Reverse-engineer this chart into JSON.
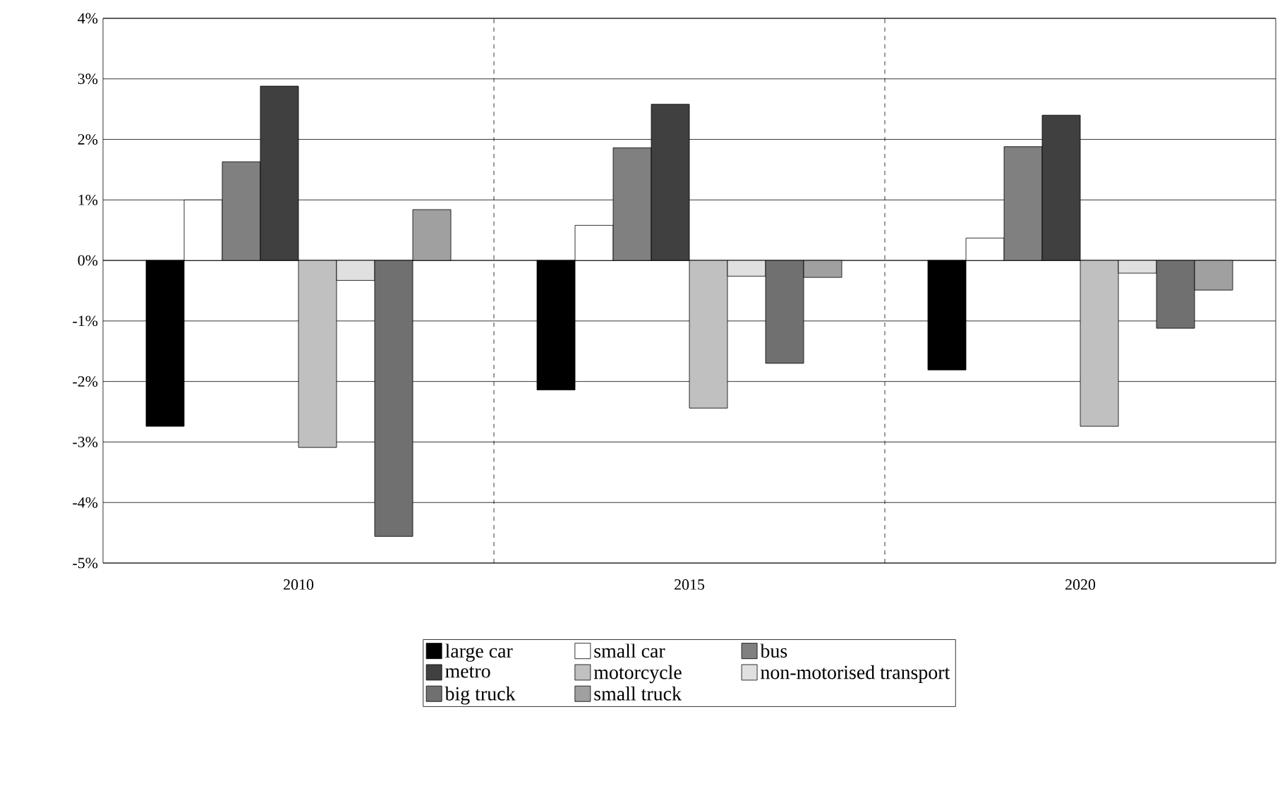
{
  "chart_data": {
    "type": "bar",
    "categories": [
      "2010",
      "2015",
      "2020"
    ],
    "series": [
      {
        "name": "large car",
        "color": "#000000",
        "values": [
          -2.74,
          -2.14,
          -1.81
        ]
      },
      {
        "name": "small car",
        "color": "#ffffff",
        "values": [
          1.0,
          0.58,
          0.37
        ]
      },
      {
        "name": "bus",
        "color": "#808080",
        "values": [
          1.63,
          1.86,
          1.88
        ]
      },
      {
        "name": "metro",
        "color": "#404040",
        "values": [
          2.88,
          2.58,
          2.4
        ]
      },
      {
        "name": "motorcycle",
        "color": "#c0c0c0",
        "values": [
          -3.09,
          -2.44,
          -2.74
        ]
      },
      {
        "name": "non-motorised transport",
        "color": "#e0e0e0",
        "values": [
          -0.33,
          -0.26,
          -0.21
        ]
      },
      {
        "name": "big truck",
        "color": "#707070",
        "values": [
          -4.56,
          -1.7,
          -1.12
        ]
      },
      {
        "name": "small truck",
        "color": "#a0a0a0",
        "values": [
          0.84,
          -0.28,
          -0.49
        ]
      }
    ],
    "ylim": [
      -5,
      4
    ],
    "yticks": [
      {
        "value": -5,
        "label": "-5%"
      },
      {
        "value": -4,
        "label": "-4%"
      },
      {
        "value": -3,
        "label": "-3%"
      },
      {
        "value": -2,
        "label": "-2%"
      },
      {
        "value": -1,
        "label": "-1%"
      },
      {
        "value": 0,
        "label": "0%"
      },
      {
        "value": 1,
        "label": "1%"
      },
      {
        "value": 2,
        "label": "2%"
      },
      {
        "value": 3,
        "label": "3%"
      },
      {
        "value": 4,
        "label": "4%"
      }
    ],
    "grid": "y",
    "legend": "bottom"
  }
}
